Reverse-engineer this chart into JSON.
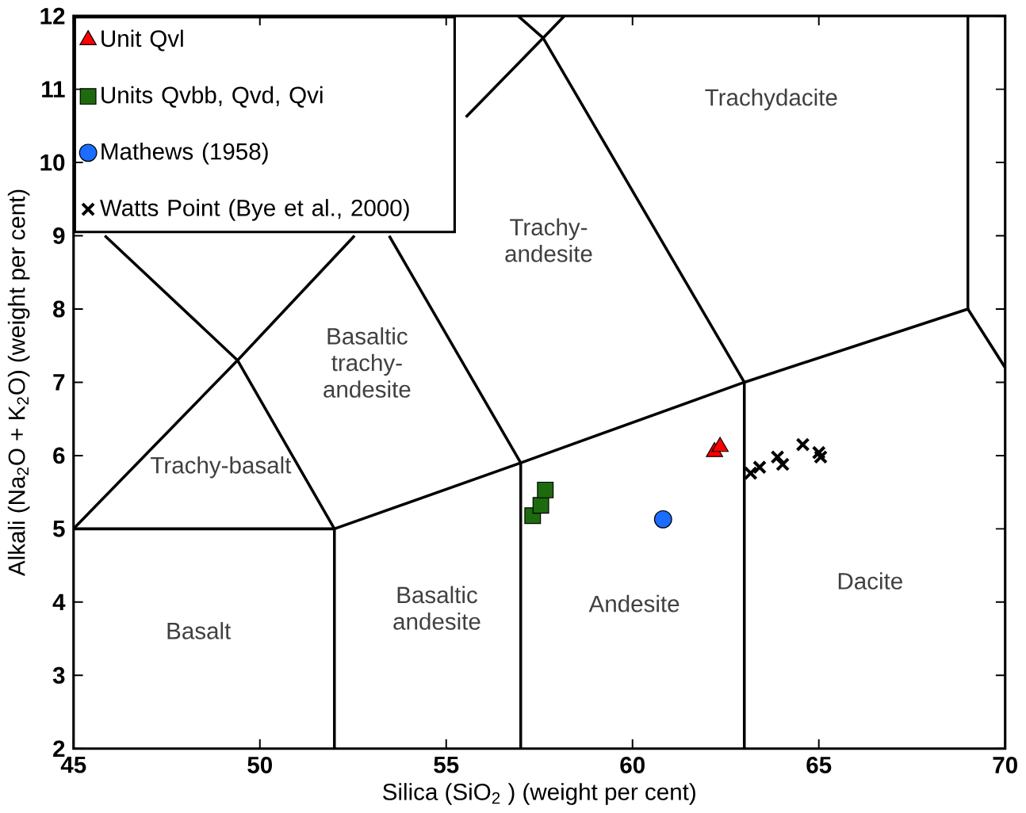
{
  "chart_data": {
    "type": "scatter",
    "xlabel": "Silica (SiO$_{2}$ ) (weight per cent)",
    "ylabel": "Alkali (Na$_{2}$O + K$_{2}$O) (weight per cent)",
    "xlim": [
      45,
      70
    ],
    "ylim": [
      2,
      12
    ],
    "xticks": [
      45,
      50,
      55,
      60,
      65,
      70
    ],
    "yticks": [
      2,
      3,
      4,
      5,
      6,
      7,
      8,
      9,
      10,
      11,
      12
    ],
    "grid": false,
    "legend": "top left",
    "series": [
      {
        "type": "line",
        "color": "#000000",
        "marker": "none",
        "x": [
          45,
          49.4,
          52.54,
          null,
          55.53,
          57.6,
          58.17
        ],
        "values": [
          5,
          7.3,
          9.0,
          null,
          10.62,
          11.7,
          12
        ]
      },
      {
        "type": "line",
        "color": "#000000",
        "marker": "none",
        "x": [
          45.84,
          49.4,
          52,
          52
        ],
        "values": [
          9.0,
          7.3,
          5,
          2
        ]
      },
      {
        "type": "line",
        "color": "#000000",
        "marker": "none",
        "x": [
          45,
          52,
          57,
          63,
          69,
          70
        ],
        "values": [
          5,
          5,
          5.9,
          7,
          8,
          7.2
        ]
      },
      {
        "type": "line",
        "color": "#000000",
        "marker": "none",
        "x": [
          53.47,
          57,
          57
        ],
        "values": [
          9.0,
          5.9,
          2
        ]
      },
      {
        "type": "line",
        "color": "#000000",
        "marker": "none",
        "x": [
          56.93,
          57.6,
          63,
          63
        ],
        "values": [
          12,
          11.7,
          7,
          2
        ]
      },
      {
        "type": "line",
        "color": "#000000",
        "marker": "none",
        "x": [
          69,
          69
        ],
        "values": [
          12,
          8
        ]
      },
      {
        "name": "Unit Qvl",
        "color": "#ff0000",
        "marker": "triangle",
        "x": [
          62.2,
          62.35
        ],
        "values": [
          6.05,
          6.12
        ]
      },
      {
        "name": "Units Qvbb, Qvd, Qvi",
        "color": "#1e6a0e",
        "marker": "square",
        "x": [
          57.32,
          57.54,
          57.66
        ],
        "values": [
          5.18,
          5.32,
          5.53
        ]
      },
      {
        "name": "Mathews (1958)",
        "color": "#1a6dff",
        "marker": "circle",
        "x": [
          60.82
        ],
        "values": [
          5.13
        ]
      },
      {
        "name": "Watts Point (Bye et al., 2000)",
        "color": "#000000",
        "marker": "cross",
        "x": [
          63.17,
          63.41,
          63.89,
          64.03,
          64.57,
          65.0,
          65.05
        ],
        "values": [
          5.76,
          5.84,
          5.98,
          5.88,
          6.15,
          6.04,
          5.98
        ]
      }
    ],
    "annotations": [
      "Trachydacite",
      "Trachy-andesite",
      "Basaltic trachy-andesite",
      "Trachy-basalt",
      "Basalt",
      "Basaltic andesite",
      "Andesite",
      "Dacite"
    ]
  }
}
